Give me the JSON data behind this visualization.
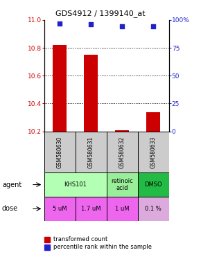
{
  "title": "GDS4912 / 1399140_at",
  "samples": [
    "GSM580630",
    "GSM580631",
    "GSM580632",
    "GSM580633"
  ],
  "bar_values": [
    10.82,
    10.75,
    10.21,
    10.34
  ],
  "bar_baseline": 10.2,
  "percentile_values": [
    97,
    96,
    94,
    94
  ],
  "ylim_left": [
    10.2,
    11.0
  ],
  "ylim_right": [
    0,
    100
  ],
  "yticks_left": [
    10.2,
    10.4,
    10.6,
    10.8,
    11.0
  ],
  "yticks_right": [
    0,
    25,
    50,
    75,
    100
  ],
  "yticklabels_right": [
    "0",
    "25",
    "50",
    "75",
    "100%"
  ],
  "bar_color": "#cc0000",
  "dot_color": "#2222cc",
  "agent_info": [
    [
      0,
      2,
      "KHS101",
      "#b3ffb3"
    ],
    [
      2,
      1,
      "retinoic\nacid",
      "#99ee99"
    ],
    [
      3,
      1,
      "DMSO",
      "#22bb44"
    ]
  ],
  "dose_labels": [
    "5 uM",
    "1.7 uM",
    "1 uM",
    "0.1 %"
  ],
  "dose_color_bright": "#ee66ee",
  "dose_color_light": "#ddaadd",
  "sample_bg_color": "#cccccc",
  "legend_bar_label": "transformed count",
  "legend_dot_label": "percentile rank within the sample"
}
